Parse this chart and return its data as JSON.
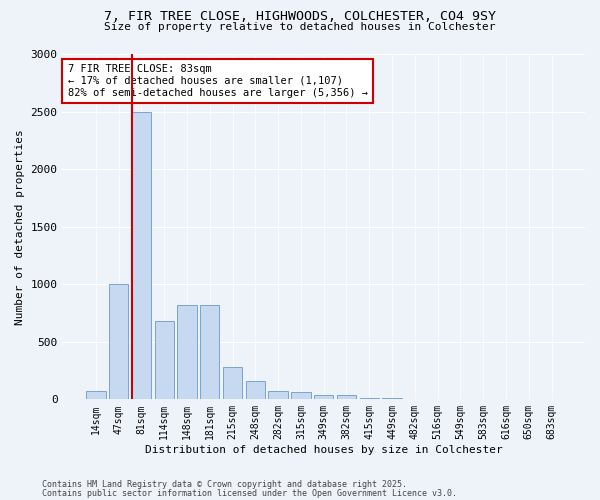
{
  "title_line1": "7, FIR TREE CLOSE, HIGHWOODS, COLCHESTER, CO4 9SY",
  "title_line2": "Size of property relative to detached houses in Colchester",
  "xlabel": "Distribution of detached houses by size in Colchester",
  "ylabel": "Number of detached properties",
  "bar_labels": [
    "14sqm",
    "47sqm",
    "81sqm",
    "114sqm",
    "148sqm",
    "181sqm",
    "215sqm",
    "248sqm",
    "282sqm",
    "315sqm",
    "349sqm",
    "382sqm",
    "415sqm",
    "449sqm",
    "482sqm",
    "516sqm",
    "549sqm",
    "583sqm",
    "616sqm",
    "650sqm",
    "683sqm"
  ],
  "bar_values": [
    75,
    1000,
    2500,
    680,
    820,
    820,
    280,
    160,
    75,
    65,
    35,
    35,
    10,
    8,
    5,
    3,
    2,
    1,
    1,
    1,
    0
  ],
  "bar_color": "#c6d9f1",
  "bar_edgecolor": "#7ba3d4",
  "vline_index": 2,
  "vline_color": "#cc0000",
  "annotation_text": "7 FIR TREE CLOSE: 83sqm\n← 17% of detached houses are smaller (1,107)\n82% of semi-detached houses are larger (5,356) →",
  "annotation_box_edgecolor": "#cc0000",
  "ylim": [
    0,
    3000
  ],
  "yticks": [
    0,
    500,
    1000,
    1500,
    2000,
    2500,
    3000
  ],
  "footer_line1": "Contains HM Land Registry data © Crown copyright and database right 2025.",
  "footer_line2": "Contains public sector information licensed under the Open Government Licence v3.0.",
  "bg_color": "#eef2f9",
  "plot_bg_color": "#eef2f9"
}
